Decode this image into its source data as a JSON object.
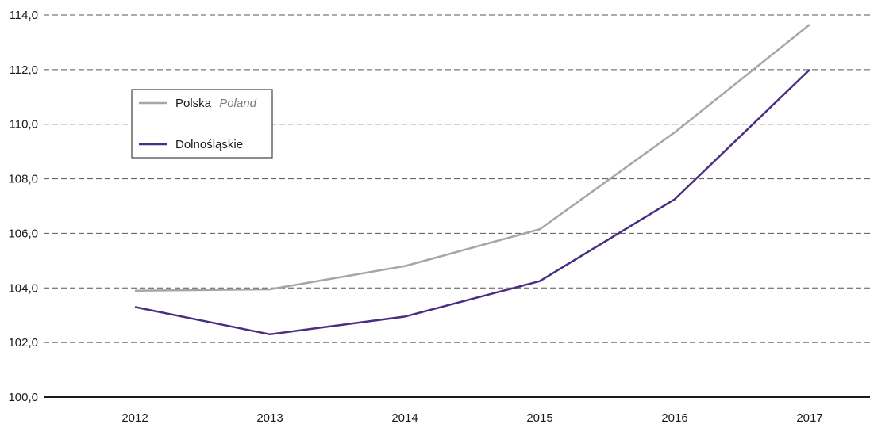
{
  "chart_data": {
    "type": "line",
    "x": [
      "2012",
      "2013",
      "2014",
      "2015",
      "2016",
      "2017"
    ],
    "ylim": [
      100,
      114
    ],
    "yticks": [
      "100,0",
      "102,0",
      "104,0",
      "106,0",
      "108,0",
      "110,0",
      "112,0",
      "114,0"
    ],
    "grid": "horizontal dashed",
    "legend_position": "top-left",
    "series": [
      {
        "name": "Polska",
        "name_en": "Poland",
        "color": "#a6a6a6",
        "values": [
          103.9,
          103.95,
          104.8,
          106.15,
          109.7,
          113.65
        ]
      },
      {
        "name": "Dolnośląskie",
        "color": "#4b2e83",
        "values": [
          103.3,
          102.3,
          102.95,
          104.25,
          107.25,
          112.0
        ]
      }
    ]
  }
}
